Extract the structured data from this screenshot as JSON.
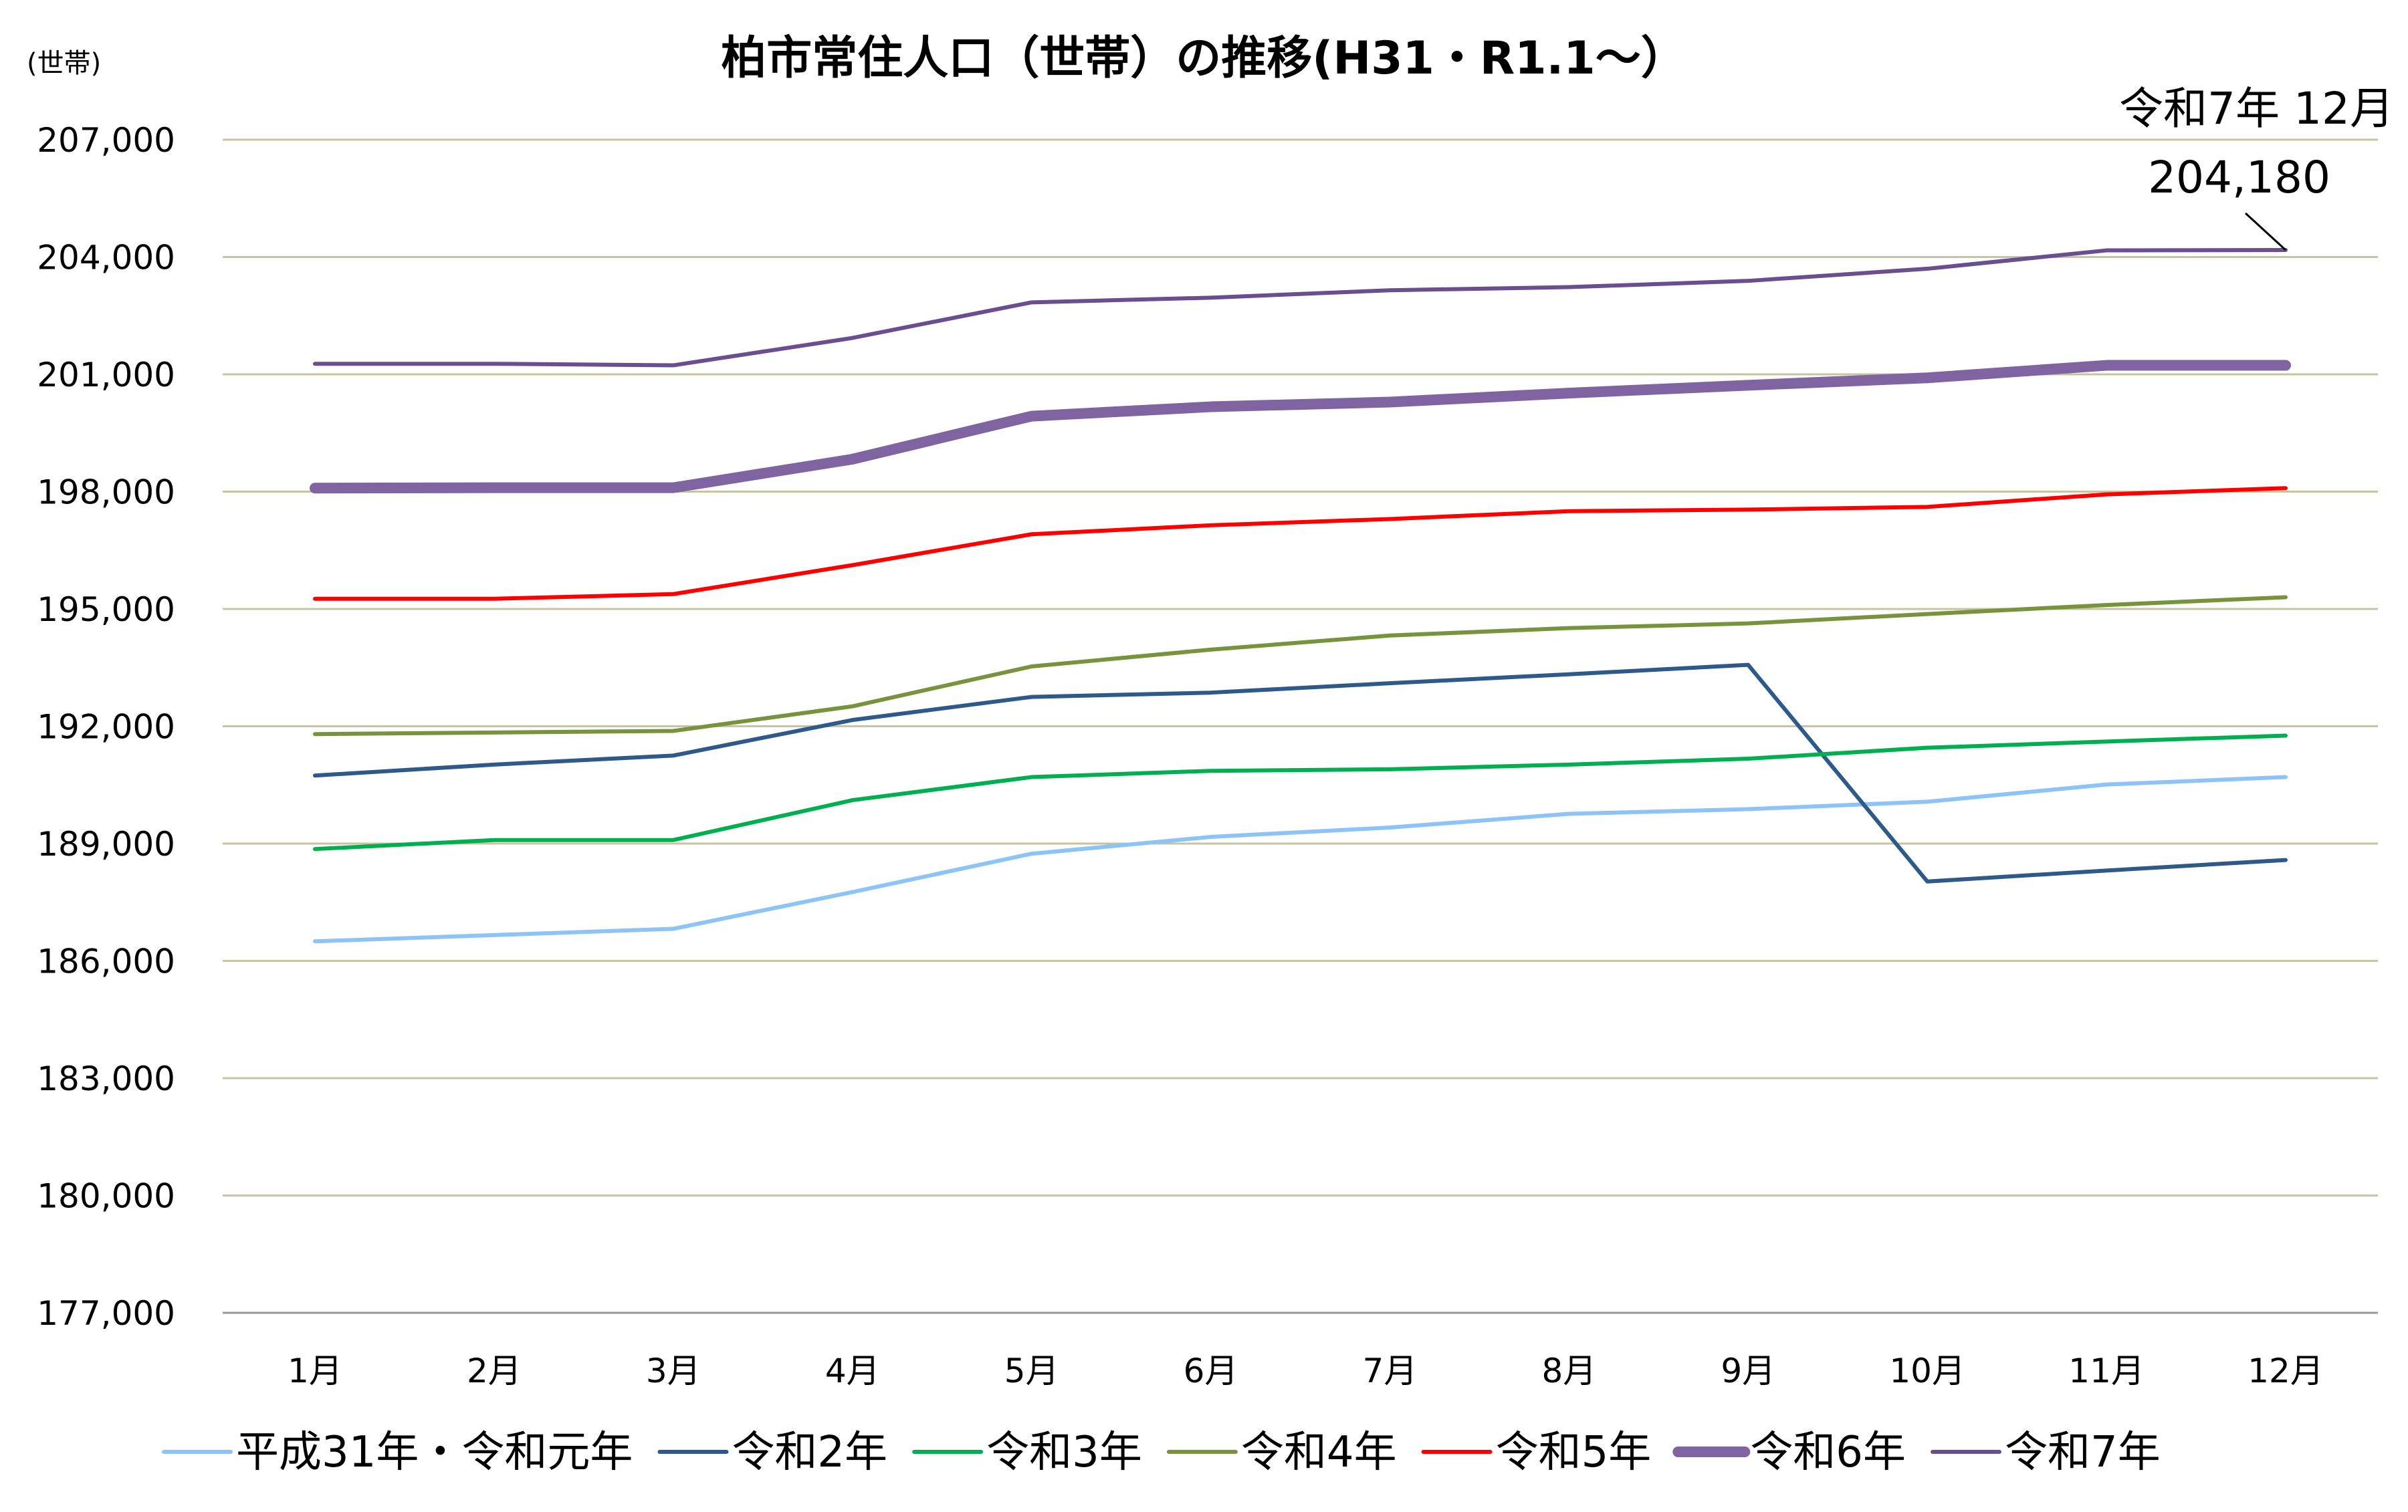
{
  "chart_data": {
    "type": "line",
    "title": "柏市常住人口（世帯）の推移(H31・R1.1～）",
    "ylabel": "(世帯)",
    "xlabel": "",
    "categories": [
      "1月",
      "2月",
      "3月",
      "4月",
      "5月",
      "6月",
      "7月",
      "8月",
      "9月",
      "10月",
      "11月",
      "12月"
    ],
    "ylim": [
      177000,
      207000
    ],
    "yticks": [
      177000,
      180000,
      183000,
      186000,
      189000,
      192000,
      195000,
      198000,
      201000,
      204000,
      207000
    ],
    "ytick_labels": [
      "177,000",
      "180,000",
      "183,000",
      "186,000",
      "189,000",
      "192,000",
      "195,000",
      "198,000",
      "201,000",
      "204,000",
      "207,000"
    ],
    "grid": "horizontal",
    "legend_position": "bottom",
    "series": [
      {
        "name": "平成31年・令和元年",
        "color": "#8EC3F7",
        "width": "normal",
        "values": [
          186500,
          186660,
          186820,
          187760,
          188740,
          189170,
          189410,
          189760,
          189880,
          190070,
          190510,
          190700
        ]
      },
      {
        "name": "令和2年",
        "color": "#2E5A8A",
        "width": "normal",
        "values": [
          190740,
          191020,
          191250,
          192160,
          192750,
          192860,
          193100,
          193330,
          193570,
          188030,
          188310,
          188580
        ]
      },
      {
        "name": "令和3年",
        "color": "#00B050",
        "width": "normal",
        "values": [
          188860,
          189090,
          189090,
          190110,
          190700,
          190860,
          190900,
          191020,
          191170,
          191450,
          191610,
          191760
        ]
      },
      {
        "name": "令和4年",
        "color": "#77933C",
        "width": "normal",
        "values": [
          191800,
          191840,
          191880,
          192510,
          193530,
          193960,
          194320,
          194510,
          194630,
          194870,
          195100,
          195300
        ]
      },
      {
        "name": "令和5年",
        "color": "#FF0000",
        "width": "normal",
        "values": [
          195260,
          195260,
          195380,
          196120,
          196910,
          197140,
          197300,
          197500,
          197540,
          197610,
          197930,
          198090
        ]
      },
      {
        "name": "令和6年",
        "color": "#8064A2",
        "width": "thick",
        "values": [
          198090,
          198100,
          198100,
          198830,
          199930,
          200170,
          200290,
          200520,
          200720,
          200910,
          201230,
          201230
        ]
      },
      {
        "name": "令和7年",
        "color": "#6B4E8F",
        "width": "normal",
        "values": [
          201270,
          201270,
          201230,
          201930,
          202840,
          202960,
          203150,
          203230,
          203390,
          203700,
          204170,
          204180
        ]
      }
    ],
    "annotation": {
      "line1": "令和7年 12月",
      "line2": "204,180",
      "series": "令和7年",
      "point": "12月"
    }
  }
}
